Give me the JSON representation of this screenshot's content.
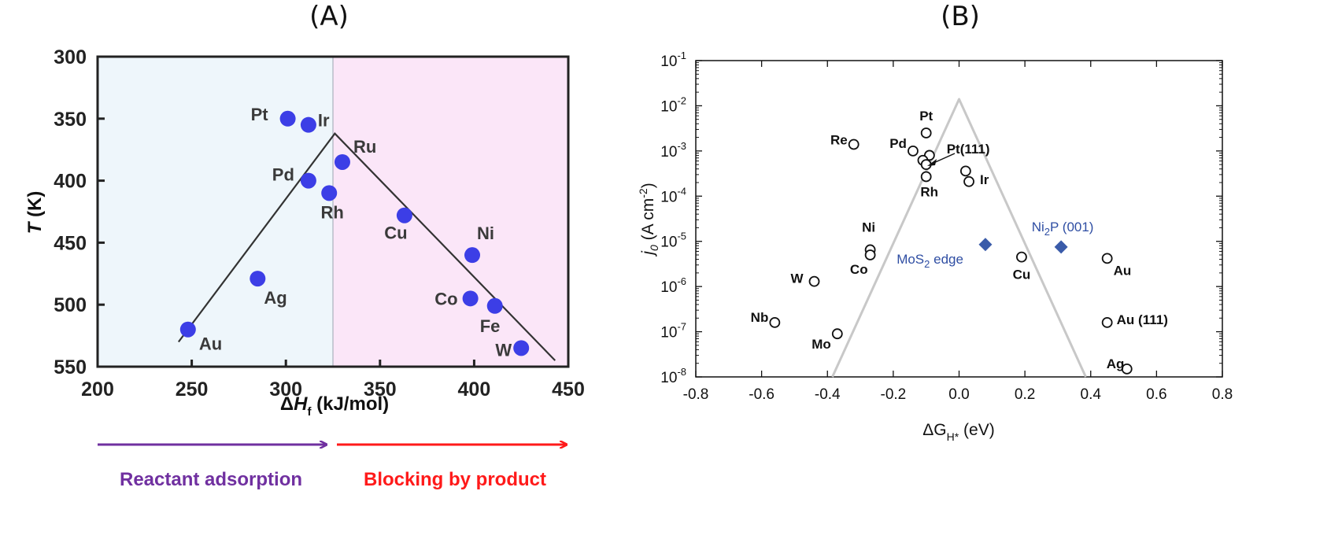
{
  "chart_data": [
    {
      "panel": "(A)",
      "type": "scatter",
      "xlabel_parts": [
        "Δ",
        "H",
        "f",
        " (kJ/mol)"
      ],
      "ylabel_parts": [
        "T",
        " (K)"
      ],
      "xlim": [
        200,
        450
      ],
      "ylim": [
        300,
        550
      ],
      "y_inverted": true,
      "xticks": [
        200,
        250,
        300,
        350,
        400,
        450
      ],
      "yticks": [
        300,
        350,
        400,
        450,
        500,
        550
      ],
      "region_divider_x": 325,
      "regions": [
        {
          "range": [
            200,
            325
          ],
          "color": "#eef6fb"
        },
        {
          "range": [
            325,
            450
          ],
          "color": "#fbe6f8"
        }
      ],
      "points": [
        {
          "label": "Pt",
          "x": 301,
          "y": 350
        },
        {
          "label": "Ir",
          "x": 312,
          "y": 355
        },
        {
          "label": "Ru",
          "x": 330,
          "y": 385
        },
        {
          "label": "Pd",
          "x": 312,
          "y": 400
        },
        {
          "label": "Rh",
          "x": 323,
          "y": 410
        },
        {
          "label": "Cu",
          "x": 363,
          "y": 428
        },
        {
          "label": "Ni",
          "x": 399,
          "y": 460
        },
        {
          "label": "Ag",
          "x": 285,
          "y": 479
        },
        {
          "label": "Co",
          "x": 398,
          "y": 495
        },
        {
          "label": "Fe",
          "x": 411,
          "y": 501
        },
        {
          "label": "Au",
          "x": 248,
          "y": 520
        },
        {
          "label": "W",
          "x": 425,
          "y": 535
        }
      ],
      "volcano_line": [
        [
          243,
          530
        ],
        [
          326,
          362
        ],
        [
          443,
          545
        ]
      ],
      "point_color": "#3c3ee6",
      "arrows": [
        {
          "label": "Reactant adsorption",
          "color": "#7030a0"
        },
        {
          "label": "Blocking by product",
          "color": "#ff1a1a"
        }
      ]
    },
    {
      "panel": "(B)",
      "type": "scatter",
      "log_y": true,
      "xlabel_parts": [
        "ΔG",
        "H*",
        " (eV)"
      ],
      "ylabel_parts": [
        "j",
        "0",
        " (A cm",
        "-2",
        ")"
      ],
      "xlim": [
        -0.8,
        0.8
      ],
      "ylim": [
        1e-08,
        0.1
      ],
      "xticks": [
        "-0.8",
        "-0.6",
        "-0.4",
        "-0.2",
        "0.0",
        "0.2",
        "0.4",
        "0.6",
        "0.8"
      ],
      "yticks_exp": [
        "-1",
        "-2",
        "-3",
        "-4",
        "-5",
        "-6",
        "-7",
        "-8"
      ],
      "ytick_base": "10",
      "volcano_curve": [
        [
          -0.385,
          1e-08
        ],
        [
          0.0,
          0.014
        ],
        [
          0.385,
          1e-08
        ]
      ],
      "points": [
        {
          "label": "Pt",
          "x": -0.1,
          "y": 0.0025
        },
        {
          "label": "Re",
          "x": -0.32,
          "y": 0.0014
        },
        {
          "label": "Pd",
          "x": -0.14,
          "y": 0.001
        },
        {
          "label": "",
          "x": -0.09,
          "y": 0.0008
        },
        {
          "label": "",
          "x": -0.11,
          "y": 0.00062
        },
        {
          "label": "",
          "x": -0.1,
          "y": 0.0005
        },
        {
          "label": "Pt(111)",
          "x": -0.1,
          "y": 0.0005
        },
        {
          "label": "Rh",
          "x": -0.1,
          "y": 0.00027
        },
        {
          "label": "",
          "x": 0.02,
          "y": 0.00036
        },
        {
          "label": "Ir",
          "x": 0.03,
          "y": 0.00021
        },
        {
          "label": "Ni",
          "x": -0.27,
          "y": 6.5e-06
        },
        {
          "label": "Co",
          "x": -0.27,
          "y": 5e-06
        },
        {
          "label": "W",
          "x": -0.44,
          "y": 1.3e-06
        },
        {
          "label": "Nb",
          "x": -0.56,
          "y": 1.6e-07
        },
        {
          "label": "Mo",
          "x": -0.37,
          "y": 9e-08
        },
        {
          "label": "Cu",
          "x": 0.19,
          "y": 4.5e-06
        },
        {
          "label": "Au",
          "x": 0.45,
          "y": 4.2e-06
        },
        {
          "label": "Au (111)",
          "x": 0.45,
          "y": 1.6e-07
        },
        {
          "label": "Ag",
          "x": 0.51,
          "y": 1.5e-08
        }
      ],
      "highlight_points": [
        {
          "label_parts": [
            "MoS",
            "2",
            " edge"
          ],
          "x": 0.08,
          "y": 8.5e-06
        },
        {
          "label_parts": [
            "Ni",
            "2",
            "P (001)"
          ],
          "x": 0.31,
          "y": 7.5e-06
        }
      ],
      "highlight_color": "#3a5ba9",
      "curve_color": "#c8c8c8"
    }
  ]
}
